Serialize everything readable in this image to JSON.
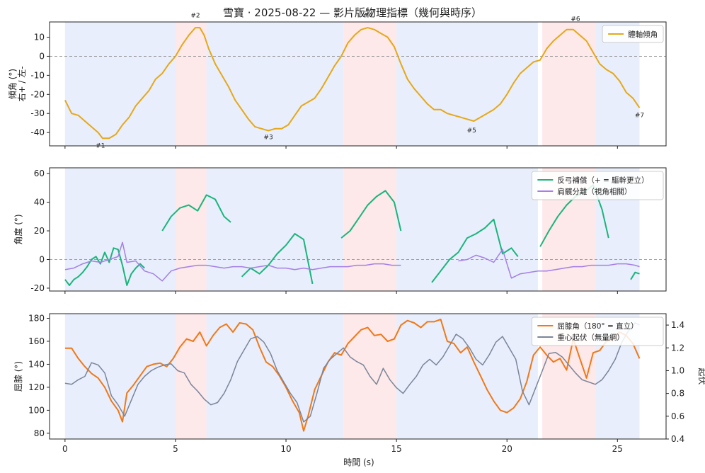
{
  "title": "雪寶 · 2025-08-22 — 影片版物理指標（幾何與時序）",
  "xlabel": "時間 (s)",
  "colors": {
    "span_blue": "#e8eefb",
    "span_red": "#fde8ea",
    "tilt": "#e6a817",
    "counter": "#19b57c",
    "shoulder": "#a57fe6",
    "knee": "#f07818",
    "com": "#7a8599",
    "zero_line": "#888888"
  },
  "chart_data": [
    {
      "type": "line",
      "ylabel": "傾角 (°)\n右+ / 左-",
      "xlim": [
        -0.7,
        27.2
      ],
      "ylim": [
        -47,
        18
      ],
      "yticks": [
        10,
        0,
        -10,
        -20,
        -30,
        -40
      ],
      "legend": {
        "position": "top-right",
        "entries": [
          "體軸傾角"
        ]
      },
      "series": [
        {
          "name": "體軸傾角",
          "x": [
            0,
            0.3,
            0.6,
            0.9,
            1.2,
            1.5,
            1.7,
            2.0,
            2.3,
            2.6,
            2.9,
            3.2,
            3.5,
            3.8,
            4.1,
            4.4,
            4.7,
            5.0,
            5.3,
            5.6,
            5.9,
            6.1,
            6.3,
            6.5,
            6.8,
            7.1,
            7.4,
            7.7,
            8.0,
            8.3,
            8.6,
            8.9,
            9.2,
            9.5,
            9.8,
            10.1,
            10.4,
            10.7,
            11.0,
            11.3,
            11.6,
            11.9,
            12.2,
            12.5,
            12.8,
            13.1,
            13.4,
            13.7,
            14.0,
            14.3,
            14.6,
            14.9,
            15.2,
            15.5,
            15.8,
            16.1,
            16.4,
            16.7,
            17.0,
            17.3,
            17.6,
            17.9,
            18.2,
            18.5,
            18.8,
            19.1,
            19.4,
            19.7,
            20.0,
            20.3,
            20.6,
            20.9,
            21.2,
            21.5,
            21.8,
            22.1,
            22.4,
            22.7,
            23.0,
            23.3,
            23.6,
            23.9,
            24.2,
            24.5,
            24.8,
            25.1,
            25.4,
            25.7,
            26.0
          ],
          "values": [
            -23,
            -30,
            -31,
            -34,
            -37,
            -40,
            -43,
            -43,
            -41,
            -36,
            -32,
            -26,
            -22,
            -18,
            -12,
            -9,
            -4,
            0,
            6,
            11,
            15,
            15,
            11,
            4,
            -4,
            -10,
            -16,
            -23,
            -28,
            -33,
            -37,
            -38,
            -39,
            -38,
            -38,
            -36,
            -31,
            -26,
            -24,
            -22,
            -17,
            -11,
            -5,
            0,
            7,
            11,
            14,
            15,
            14,
            12,
            10,
            5,
            -4,
            -12,
            -17,
            -21,
            -25,
            -28,
            -28,
            -30,
            -31,
            -32,
            -33,
            -34,
            -32,
            -30,
            -28,
            -25,
            -20,
            -14,
            -9,
            -6,
            -3,
            -2,
            4,
            8,
            11,
            14,
            14,
            11,
            8,
            2,
            -4,
            -7,
            -9,
            -13,
            -19,
            -22,
            -27
          ]
        }
      ],
      "annotations": [
        {
          "text": "#1",
          "x": 1.6,
          "y": -48
        },
        {
          "text": "#2",
          "x": 5.9,
          "y": 20.5
        },
        {
          "text": "#3",
          "x": 9.2,
          "y": -43.5
        },
        {
          "text": "#4",
          "x": 13.7,
          "y": 20.5
        },
        {
          "text": "#5",
          "x": 18.4,
          "y": -40
        },
        {
          "text": "#6",
          "x": 23.1,
          "y": 18.5
        },
        {
          "text": "#7",
          "x": 26.0,
          "y": -32
        }
      ]
    },
    {
      "type": "line",
      "ylabel": "角度 (°)",
      "xlim": [
        -0.7,
        27.2
      ],
      "ylim": [
        -22,
        64
      ],
      "yticks": [
        60,
        40,
        20,
        0,
        -20
      ],
      "legend": {
        "position": "top-right",
        "entries": [
          "反弓補償（+ = 驅幹更立）",
          "肩髖分離（視角相關）"
        ]
      },
      "series": [
        {
          "name": "反弓補償（+ = 驅幹更立）",
          "segments": [
            {
              "x": [
                0,
                0.2,
                0.4,
                0.6,
                0.8,
                1.0,
                1.2,
                1.4,
                1.6,
                1.8,
                2.0,
                2.2,
                2.4,
                2.6,
                2.8,
                3.0,
                3.2,
                3.4,
                3.6
              ],
              "values": [
                -14,
                -18,
                -14,
                -12,
                -9,
                -5,
                0,
                2,
                -3,
                5,
                -2,
                8,
                7,
                -4,
                -18,
                -10,
                -6,
                -3,
                -6
              ]
            },
            {
              "x": [
                4.4,
                4.8,
                5.2,
                5.6,
                6.0,
                6.4,
                6.8,
                7.2,
                7.5
              ],
              "values": [
                20,
                30,
                36,
                38,
                34,
                45,
                42,
                30,
                26
              ]
            },
            {
              "x": [
                8.0,
                8.4,
                8.8,
                9.2,
                9.6,
                10.0,
                10.4,
                10.8,
                11.2
              ],
              "values": [
                -12,
                -6,
                -10,
                -4,
                4,
                10,
                18,
                14,
                -17
              ]
            },
            {
              "x": [
                12.5,
                12.9,
                13.3,
                13.7,
                14.1,
                14.5,
                14.9,
                15.2
              ],
              "values": [
                15,
                20,
                29,
                38,
                44,
                48,
                40,
                20
              ]
            },
            {
              "x": [
                16.6,
                17.0,
                17.4,
                17.8,
                18.2,
                18.6,
                19.0,
                19.4,
                19.8,
                20.2,
                20.5
              ],
              "values": [
                -16,
                -8,
                0,
                5,
                15,
                18,
                22,
                28,
                4,
                8,
                2
              ]
            },
            {
              "x": [
                21.5,
                21.9,
                22.3,
                22.7,
                23.1,
                23.5,
                23.9,
                24.3,
                24.6
              ],
              "values": [
                9,
                20,
                30,
                38,
                44,
                47,
                52,
                35,
                15
              ]
            },
            {
              "x": [
                25.6,
                25.8,
                26.0
              ],
              "values": [
                -14,
                -9,
                -10
              ]
            }
          ]
        },
        {
          "name": "肩髖分離（視角相關）",
          "segments": [
            {
              "x": [
                0,
                0.4,
                0.8,
                1.2,
                1.6,
                2.0,
                2.4,
                2.6,
                2.8,
                3.2,
                3.6,
                4.0,
                4.4,
                4.8,
                5.2,
                5.6,
                6.0,
                6.4,
                6.8,
                7.2,
                7.6,
                8.0,
                8.4,
                8.8,
                9.2,
                9.6,
                10.0,
                10.4,
                10.8,
                11.2,
                11.6,
                12.0,
                12.4,
                12.8,
                13.2,
                13.6,
                14.0,
                14.4,
                14.8,
                15.2
              ],
              "values": [
                -7,
                -6,
                -3,
                -1,
                -2,
                0,
                2,
                12,
                -2,
                -1,
                -8,
                -10,
                -15,
                -8,
                -6,
                -5,
                -4,
                -4,
                -5,
                -6,
                -5,
                -5,
                -6,
                -5,
                -4,
                -6,
                -6,
                -7,
                -6,
                -7,
                -6,
                -5,
                -5,
                -5,
                -4,
                -4,
                -3,
                -3,
                -4,
                -4
              ]
            },
            {
              "x": [
                17.8,
                18.2,
                18.6,
                19.0,
                19.4,
                19.8,
                20.2,
                20.6,
                21.0,
                21.4,
                21.8,
                22.2,
                22.6,
                23.0,
                23.4,
                23.8,
                24.2,
                24.6,
                25.0,
                25.4,
                25.8,
                26.0
              ],
              "values": [
                -1,
                0,
                3,
                1,
                -2,
                7,
                -13,
                -10,
                -9,
                -8,
                -8,
                -7,
                -6,
                -5,
                -5,
                -4,
                -4,
                -4,
                -3,
                -3,
                -4,
                -5
              ]
            }
          ]
        }
      ]
    },
    {
      "type": "line",
      "ylabel": "屈膝 (°)",
      "ylabel_right": "起伏",
      "xlim": [
        -0.7,
        27.2
      ],
      "ylim": [
        75,
        184
      ],
      "yticks": [
        180,
        160,
        140,
        120,
        100,
        80
      ],
      "ylim_right": [
        0.4,
        1.5
      ],
      "yticks_right": [
        1.4,
        1.2,
        1.0,
        0.8,
        0.6,
        0.4
      ],
      "xticks": [
        0,
        5,
        10,
        15,
        20,
        25
      ],
      "legend": {
        "position": "top-right",
        "entries": [
          "屈膝角（180° = 直立）",
          "重心起伏（無量綱）"
        ]
      },
      "series": [
        {
          "name": "屈膝角（180° = 直立）",
          "axis": "left",
          "x": [
            0,
            0.3,
            0.6,
            0.9,
            1.2,
            1.5,
            1.8,
            2.1,
            2.4,
            2.6,
            2.8,
            3.1,
            3.4,
            3.7,
            4.0,
            4.3,
            4.6,
            4.9,
            5.2,
            5.5,
            5.8,
            6.1,
            6.4,
            6.7,
            7.0,
            7.3,
            7.6,
            7.9,
            8.2,
            8.5,
            8.8,
            9.1,
            9.4,
            9.7,
            10.0,
            10.3,
            10.6,
            10.8,
            11.0,
            11.3,
            11.6,
            11.9,
            12.2,
            12.5,
            12.8,
            13.1,
            13.4,
            13.7,
            14.0,
            14.3,
            14.6,
            14.9,
            15.2,
            15.5,
            15.8,
            16.1,
            16.4,
            16.7,
            17.0,
            17.3,
            17.6,
            17.9,
            18.2,
            18.5,
            18.8,
            19.1,
            19.4,
            19.7,
            20.0,
            20.3,
            20.6,
            20.9,
            21.2,
            21.5,
            21.8,
            22.1,
            22.4,
            22.7,
            23.0,
            23.3,
            23.6,
            23.9,
            24.2,
            24.5,
            24.8,
            25.1,
            25.4,
            25.7,
            26.0
          ],
          "values": [
            154,
            154,
            145,
            138,
            132,
            128,
            120,
            108,
            100,
            90,
            115,
            122,
            130,
            138,
            140,
            141,
            138,
            145,
            155,
            162,
            160,
            168,
            156,
            165,
            172,
            175,
            168,
            176,
            175,
            170,
            155,
            142,
            138,
            130,
            120,
            108,
            98,
            82,
            95,
            118,
            130,
            142,
            150,
            148,
            158,
            164,
            170,
            172,
            165,
            166,
            160,
            162,
            174,
            178,
            176,
            172,
            177,
            177,
            179,
            160,
            158,
            150,
            155,
            142,
            130,
            118,
            108,
            100,
            98,
            102,
            110,
            125,
            148,
            155,
            148,
            142,
            145,
            135,
            162,
            145,
            128,
            150,
            152,
            160,
            162,
            168,
            165,
            158,
            145
          ]
        },
        {
          "name": "重心起伏（無量綱）",
          "axis": "right",
          "x": [
            0,
            0.3,
            0.6,
            0.9,
            1.2,
            1.5,
            1.8,
            2.1,
            2.4,
            2.7,
            3.0,
            3.3,
            3.6,
            3.9,
            4.2,
            4.5,
            4.8,
            5.1,
            5.4,
            5.7,
            6.0,
            6.3,
            6.6,
            6.9,
            7.2,
            7.5,
            7.8,
            8.1,
            8.4,
            8.7,
            9.0,
            9.3,
            9.6,
            9.9,
            10.2,
            10.5,
            10.8,
            11.1,
            11.4,
            11.7,
            12.0,
            12.3,
            12.6,
            12.9,
            13.2,
            13.5,
            13.8,
            14.1,
            14.4,
            14.7,
            15.0,
            15.3,
            15.6,
            15.9,
            16.2,
            16.5,
            16.8,
            17.1,
            17.4,
            17.7,
            18.0,
            18.3,
            18.6,
            18.9,
            19.2,
            19.5,
            19.8,
            20.1,
            20.4,
            20.7,
            21.0,
            21.3,
            21.6,
            21.9,
            22.2,
            22.5,
            22.8,
            23.1,
            23.4,
            23.7,
            24.0,
            24.3,
            24.6,
            24.9,
            25.2,
            25.5,
            25.8,
            26.0
          ],
          "values": [
            0.89,
            0.88,
            0.92,
            0.95,
            1.07,
            1.05,
            0.98,
            0.78,
            0.7,
            0.6,
            0.74,
            0.88,
            0.95,
            1.0,
            1.03,
            1.05,
            1.06,
            1.0,
            0.98,
            0.88,
            0.82,
            0.75,
            0.7,
            0.72,
            0.8,
            0.92,
            1.08,
            1.18,
            1.28,
            1.3,
            1.25,
            1.15,
            1.0,
            0.9,
            0.8,
            0.72,
            0.55,
            0.6,
            0.8,
            1.02,
            1.1,
            1.15,
            1.2,
            1.12,
            1.08,
            1.05,
            0.95,
            0.88,
            1.02,
            0.92,
            0.85,
            0.8,
            0.88,
            0.95,
            1.05,
            1.1,
            1.05,
            1.12,
            1.22,
            1.32,
            1.28,
            1.2,
            1.1,
            1.05,
            1.14,
            1.25,
            1.3,
            1.2,
            1.1,
            0.82,
            0.7,
            0.85,
            1.0,
            1.15,
            1.16,
            1.12,
            1.05,
            0.98,
            0.92,
            0.9,
            0.88,
            0.92,
            1.0,
            1.1,
            1.25,
            1.35,
            1.42,
            1.4
          ]
        }
      ]
    }
  ],
  "phases": [
    {
      "kind": "blue",
      "x0": 0,
      "x1": 5.0
    },
    {
      "kind": "red",
      "x0": 5.0,
      "x1": 6.4
    },
    {
      "kind": "blue",
      "x0": 6.4,
      "x1": 12.6
    },
    {
      "kind": "red",
      "x0": 12.6,
      "x1": 15.0
    },
    {
      "kind": "blue",
      "x0": 15.0,
      "x1": 21.4
    },
    {
      "kind": "red",
      "x0": 21.6,
      "x1": 24.0
    },
    {
      "kind": "blue",
      "x0": 24.0,
      "x1": 26.0
    }
  ]
}
